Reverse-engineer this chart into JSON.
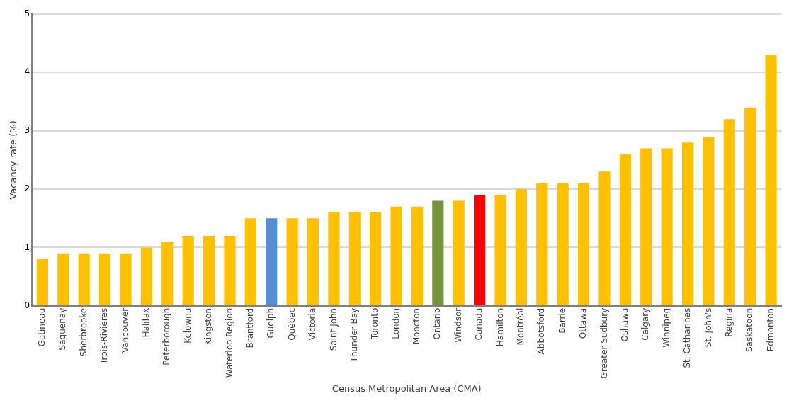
{
  "chart_data": {
    "type": "bar",
    "xlabel": "Census Metropolitan Area (CMA)",
    "ylabel": "Vacancy rate (%)",
    "categories": [
      "Gatineau",
      "Saguenay",
      "Sherbrooke",
      "Trois-Rivières",
      "Vancouver",
      "Halifax",
      "Peterborough",
      "Kelowna",
      "Kingston",
      "Waterloo Region",
      "Brantford",
      "Guelph",
      "Québec",
      "Victoria",
      "Saint John",
      "Thunder Bay",
      "Toronto",
      "London",
      "Moncton",
      "Ontario",
      "Windsor",
      "Canada",
      "Hamilton",
      "Montréal",
      "Abbotsford",
      "Barrie",
      "Ottawa",
      "Greater Sudbury",
      "Oshawa",
      "Calgary",
      "Winnipeg",
      "St. Catharines",
      "St. John's",
      "Regina",
      "Saskatoon",
      "Edmonton"
    ],
    "values": [
      0.8,
      0.9,
      0.9,
      0.9,
      0.9,
      1.0,
      1.1,
      1.2,
      1.2,
      1.2,
      1.5,
      1.5,
      1.5,
      1.5,
      1.6,
      1.6,
      1.6,
      1.7,
      1.7,
      1.8,
      1.8,
      1.9,
      1.9,
      2.0,
      2.1,
      2.1,
      2.1,
      2.3,
      2.6,
      2.7,
      2.7,
      2.8,
      2.9,
      3.2,
      3.4,
      4.3
    ],
    "colors": [
      "#ffc000",
      "#ffc000",
      "#ffc000",
      "#ffc000",
      "#ffc000",
      "#ffc000",
      "#ffc000",
      "#ffc000",
      "#ffc000",
      "#ffc000",
      "#ffc000",
      "#558ed5",
      "#ffc000",
      "#ffc000",
      "#ffc000",
      "#ffc000",
      "#ffc000",
      "#ffc000",
      "#ffc000",
      "#77933c",
      "#ffc000",
      "#ff0000",
      "#ffc000",
      "#ffc000",
      "#ffc000",
      "#ffc000",
      "#ffc000",
      "#ffc000",
      "#ffc000",
      "#ffc000",
      "#ffc000",
      "#ffc000",
      "#ffc000",
      "#ffc000",
      "#ffc000",
      "#ffc000"
    ],
    "ylim": [
      0,
      5
    ],
    "yticks": [
      0,
      1,
      2,
      3,
      4,
      5
    ],
    "grid": "y"
  }
}
